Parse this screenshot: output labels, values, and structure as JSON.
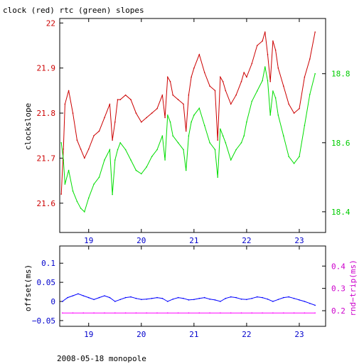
{
  "page": {
    "title": "clock (red) rtc (green) slopes",
    "footer": "2008-05-18 monopole"
  },
  "colors": {
    "frame": "#000000",
    "clock": "#cc0000",
    "rtc": "#00dd00",
    "offset": "#0000ff",
    "rndtrip": "#ff00ff",
    "axis_left_top": "#cc0000",
    "axis_right_top": "#00cc00",
    "axis_bottom": "#0000cc",
    "axis_right_bottom": "#cc00cc"
  },
  "chart_data": [
    {
      "type": "line",
      "title": "clock (red) rtc (green) slopes",
      "xlabel": "",
      "ylabel": "clockslope",
      "xlim": [
        18.45,
        23.5
      ],
      "ylim": [
        21.535,
        22.01
      ],
      "y2lim": [
        18.34,
        18.96
      ],
      "legend": "none",
      "grid": false,
      "x_ticks": [
        19,
        20,
        21,
        22,
        23
      ],
      "y_ticks": [
        21.6,
        21.7,
        21.8,
        21.9,
        22
      ],
      "y_tick_labels": [
        "21.6",
        "21.7",
        "21.8",
        "21.9",
        "22"
      ],
      "y2_ticks": [
        18.4,
        18.6,
        18.8
      ],
      "y2_tick_labels": [
        "18.4",
        "18.6",
        "18.8"
      ],
      "series": [
        {
          "axis": "left",
          "x": [
            18.48,
            18.52,
            18.55,
            18.62,
            18.7,
            18.78,
            18.85,
            18.92,
            19.0,
            19.1,
            19.2,
            19.3,
            19.4,
            19.45,
            19.5,
            19.55,
            19.6,
            19.7,
            19.8,
            19.9,
            20.0,
            20.1,
            20.2,
            20.3,
            20.4,
            20.45,
            20.5,
            20.55,
            20.6,
            20.7,
            20.8,
            20.85,
            20.9,
            20.95,
            21.0,
            21.1,
            21.2,
            21.3,
            21.4,
            21.45,
            21.5,
            21.55,
            21.6,
            21.7,
            21.8,
            21.9,
            21.95,
            22.0,
            22.1,
            22.2,
            22.3,
            22.35,
            22.4,
            22.45,
            22.5,
            22.55,
            22.6,
            22.7,
            22.8,
            22.9,
            23.0,
            23.1,
            23.2,
            23.3
          ],
          "values": [
            21.62,
            21.72,
            21.82,
            21.85,
            21.8,
            21.74,
            21.72,
            21.7,
            21.72,
            21.75,
            21.76,
            21.79,
            21.82,
            21.74,
            21.78,
            21.83,
            21.83,
            21.84,
            21.83,
            21.8,
            21.78,
            21.79,
            21.8,
            21.81,
            21.84,
            21.79,
            21.88,
            21.87,
            21.84,
            21.83,
            21.82,
            21.76,
            21.84,
            21.88,
            21.9,
            21.93,
            21.89,
            21.86,
            21.85,
            21.74,
            21.88,
            21.87,
            21.85,
            21.82,
            21.84,
            21.87,
            21.89,
            21.88,
            21.91,
            21.95,
            21.96,
            21.98,
            21.93,
            21.87,
            21.96,
            21.94,
            21.9,
            21.86,
            21.82,
            21.8,
            21.81,
            21.88,
            21.92,
            21.98
          ]
        },
        {
          "axis": "right",
          "x": [
            18.48,
            18.52,
            18.55,
            18.62,
            18.7,
            18.78,
            18.85,
            18.92,
            19.0,
            19.1,
            19.2,
            19.3,
            19.4,
            19.45,
            19.5,
            19.55,
            19.6,
            19.7,
            19.8,
            19.9,
            20.0,
            20.1,
            20.2,
            20.3,
            20.4,
            20.45,
            20.5,
            20.55,
            20.6,
            20.7,
            20.8,
            20.85,
            20.9,
            20.95,
            21.0,
            21.1,
            21.2,
            21.3,
            21.4,
            21.45,
            21.5,
            21.55,
            21.6,
            21.7,
            21.8,
            21.9,
            21.95,
            22.0,
            22.1,
            22.2,
            22.3,
            22.35,
            22.4,
            22.45,
            22.5,
            22.55,
            22.6,
            22.7,
            22.8,
            22.9,
            23.0,
            23.1,
            23.2,
            23.3
          ],
          "values": [
            18.6,
            18.55,
            18.48,
            18.52,
            18.46,
            18.43,
            18.41,
            18.4,
            18.44,
            18.48,
            18.5,
            18.55,
            18.58,
            18.45,
            18.55,
            18.58,
            18.6,
            18.58,
            18.55,
            18.52,
            18.51,
            18.53,
            18.56,
            18.58,
            18.62,
            18.55,
            18.68,
            18.66,
            18.62,
            18.6,
            18.58,
            18.52,
            18.62,
            18.66,
            18.68,
            18.7,
            18.65,
            18.6,
            18.58,
            18.5,
            18.64,
            18.62,
            18.6,
            18.55,
            18.58,
            18.6,
            18.62,
            18.66,
            18.72,
            18.75,
            18.78,
            18.82,
            18.78,
            18.68,
            18.75,
            18.73,
            18.68,
            18.62,
            18.56,
            18.54,
            18.56,
            18.65,
            18.74,
            18.8
          ]
        }
      ]
    },
    {
      "type": "line",
      "xlabel": "",
      "ylabel": "offset(ms)",
      "y2label": "rnd−trip(ms)",
      "xlim": [
        18.45,
        23.5
      ],
      "ylim": [
        -0.065,
        0.145
      ],
      "y2lim": [
        0.13,
        0.49
      ],
      "legend": "none",
      "grid": false,
      "x_ticks": [
        19,
        20,
        21,
        22,
        23
      ],
      "y_ticks": [
        -0.05,
        0,
        0.05,
        0.1
      ],
      "y_tick_labels": [
        "−0.05",
        "0",
        "0.05",
        "0.1"
      ],
      "y2_ticks": [
        0.2,
        0.3,
        0.4
      ],
      "y2_tick_labels": [
        "0.2",
        "0.3",
        "0.4"
      ],
      "series": [
        {
          "axis": "left",
          "x": [
            18.5,
            18.6,
            18.7,
            18.8,
            18.9,
            19.0,
            19.1,
            19.2,
            19.3,
            19.4,
            19.5,
            19.6,
            19.7,
            19.8,
            19.9,
            20.0,
            20.1,
            20.2,
            20.3,
            20.4,
            20.5,
            20.6,
            20.7,
            20.8,
            20.9,
            21.0,
            21.1,
            21.2,
            21.3,
            21.4,
            21.5,
            21.6,
            21.7,
            21.8,
            21.9,
            22.0,
            22.1,
            22.2,
            22.3,
            22.4,
            22.5,
            22.6,
            22.7,
            22.8,
            22.9,
            23.0,
            23.1,
            23.2,
            23.3
          ],
          "values": [
            0.0,
            0.01,
            0.015,
            0.02,
            0.015,
            0.01,
            0.005,
            0.01,
            0.015,
            0.01,
            0.0,
            0.005,
            0.01,
            0.012,
            0.008,
            0.005,
            0.006,
            0.008,
            0.01,
            0.008,
            0.0,
            0.006,
            0.01,
            0.008,
            0.004,
            0.005,
            0.008,
            0.01,
            0.006,
            0.004,
            0.0,
            0.008,
            0.012,
            0.01,
            0.006,
            0.005,
            0.008,
            0.012,
            0.01,
            0.006,
            0.0,
            0.005,
            0.01,
            0.012,
            0.008,
            0.004,
            0.0,
            -0.005,
            -0.01
          ]
        },
        {
          "axis": "right",
          "x": [
            18.5,
            18.7,
            18.9,
            19.1,
            19.3,
            19.5,
            19.7,
            19.9,
            20.1,
            20.3,
            20.5,
            20.7,
            20.9,
            21.1,
            21.3,
            21.5,
            21.7,
            21.9,
            22.1,
            22.3,
            22.5,
            22.7,
            22.9,
            23.1,
            23.3
          ],
          "values": [
            0.19,
            0.19,
            0.19,
            0.19,
            0.19,
            0.19,
            0.19,
            0.19,
            0.19,
            0.19,
            0.19,
            0.19,
            0.19,
            0.19,
            0.19,
            0.19,
            0.19,
            0.19,
            0.19,
            0.19,
            0.19,
            0.19,
            0.19,
            0.19,
            0.19
          ]
        }
      ]
    }
  ]
}
